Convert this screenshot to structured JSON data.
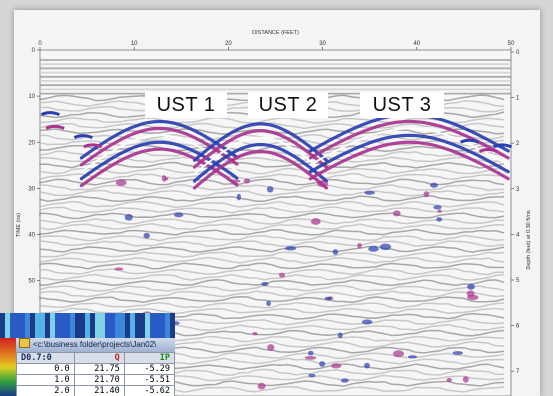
{
  "radargram": {
    "x_axis_title": "DISTANCE (FEET)",
    "left_axis_title": "TIME (ns)",
    "right_axis_title": "Depth (feet) at 0.30 ft/ns",
    "x_ticks": [
      "0",
      "10",
      "20",
      "30",
      "40",
      "50"
    ],
    "left_ticks": [
      "0",
      "10",
      "20",
      "30",
      "40",
      "50"
    ],
    "right_ticks": [
      "0",
      "1",
      "2",
      "3",
      "4",
      "5",
      "6",
      "7"
    ],
    "targets": [
      {
        "label": "UST 1",
        "x_ft": 12.5
      },
      {
        "label": "UST 2",
        "x_ft": 22.5
      },
      {
        "label": "UST 3",
        "x_ft": 39.5
      }
    ],
    "colors": {
      "positive": "#2a3fb0",
      "negative": "#a8338e",
      "background": "#f4f4f4"
    }
  },
  "data_window": {
    "title": "<c:\\business folder\\projects\\Jan02\\",
    "columns": [
      "D0.7:0",
      "Q",
      "IP"
    ],
    "rows": [
      [
        "0.0",
        "21.75",
        "-5.29"
      ],
      [
        "1.0",
        "21.70",
        "-5.51"
      ],
      [
        "2.0",
        "21.40",
        "-5.62"
      ]
    ]
  }
}
